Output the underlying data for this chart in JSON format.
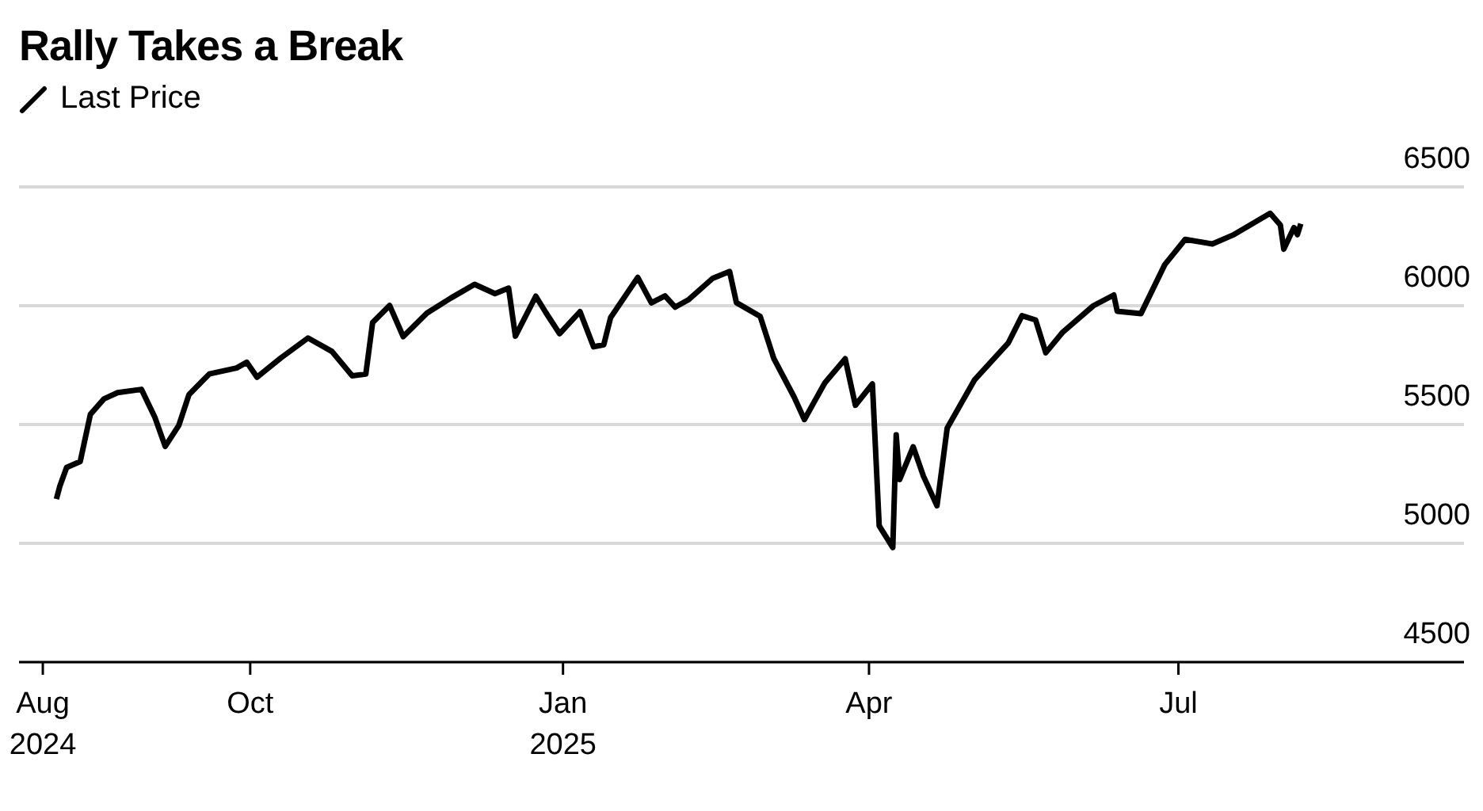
{
  "chart_data": {
    "type": "line",
    "title": "Rally Takes a Break",
    "x": [
      "2024-08-05",
      "2024-08-06",
      "2024-08-08",
      "2024-08-12",
      "2024-08-15",
      "2024-08-19",
      "2024-08-23",
      "2024-08-30",
      "2024-09-03",
      "2024-09-06",
      "2024-09-10",
      "2024-09-13",
      "2024-09-19",
      "2024-09-27",
      "2024-09-30",
      "2024-10-03",
      "2024-10-10",
      "2024-10-18",
      "2024-10-25",
      "2024-10-31",
      "2024-11-04",
      "2024-11-06",
      "2024-11-11",
      "2024-11-15",
      "2024-11-22",
      "2024-11-29",
      "2024-12-06",
      "2024-12-12",
      "2024-12-16",
      "2024-12-18",
      "2024-12-24",
      "2024-12-27",
      "2024-12-31",
      "2025-01-06",
      "2025-01-10",
      "2025-01-13",
      "2025-01-15",
      "2025-01-23",
      "2025-01-27",
      "2025-01-31",
      "2025-02-03",
      "2025-02-07",
      "2025-02-14",
      "2025-02-19",
      "2025-02-21",
      "2025-02-28",
      "2025-03-04",
      "2025-03-10",
      "2025-03-13",
      "2025-03-19",
      "2025-03-25",
      "2025-03-28",
      "2025-04-02",
      "2025-04-04",
      "2025-04-08",
      "2025-04-09",
      "2025-04-10",
      "2025-04-14",
      "2025-04-17",
      "2025-04-21",
      "2025-04-24",
      "2025-05-02",
      "2025-05-12",
      "2025-05-16",
      "2025-05-20",
      "2025-05-23",
      "2025-05-28",
      "2025-06-06",
      "2025-06-12",
      "2025-06-13",
      "2025-06-20",
      "2025-06-27",
      "2025-07-03",
      "2025-07-11",
      "2025-07-17",
      "2025-07-28",
      "2025-07-31",
      "2025-08-01",
      "2025-08-04",
      "2025-08-05",
      "2025-08-06"
    ],
    "series": [
      {
        "name": "Last Price",
        "color": "#000000",
        "values": [
          5186,
          5240,
          5319,
          5344,
          5543,
          5608,
          5634,
          5648,
          5529,
          5408,
          5496,
          5626,
          5713,
          5738,
          5762,
          5699,
          5780,
          5864,
          5808,
          5705,
          5712,
          5929,
          6001,
          5870,
          5969,
          6032,
          6090,
          6051,
          6074,
          5872,
          6040,
          5970,
          5882,
          5975,
          5827,
          5836,
          5950,
          6119,
          6012,
          6041,
          5994,
          6026,
          6115,
          6144,
          6013,
          5955,
          5778,
          5615,
          5521,
          5675,
          5777,
          5581,
          5671,
          5074,
          4982,
          5457,
          5268,
          5406,
          5283,
          5158,
          5485,
          5687,
          5844,
          5958,
          5940,
          5802,
          5889,
          6000,
          6045,
          5977,
          5967,
          6173,
          6279,
          6260,
          6297,
          6389,
          6339,
          6238,
          6329,
          6299,
          6345
        ]
      }
    ],
    "xlim": [
      "2024-07-25",
      "2025-09-23"
    ],
    "xticks": [
      {
        "value": "2024-08-01",
        "label": "Aug 2024"
      },
      {
        "value": "2024-10-01",
        "label": "Oct"
      },
      {
        "value": "2025-01-01",
        "label": "Jan 2025"
      },
      {
        "value": "2025-04-01",
        "label": "Apr"
      },
      {
        "value": "2025-07-01",
        "label": "Jul"
      }
    ],
    "ylim": [
      4500,
      6500
    ],
    "yticks": [
      4500,
      5000,
      5500,
      6000,
      6500
    ],
    "grid": "y",
    "legend": "top left",
    "marker": "none",
    "line_style": "solid"
  }
}
